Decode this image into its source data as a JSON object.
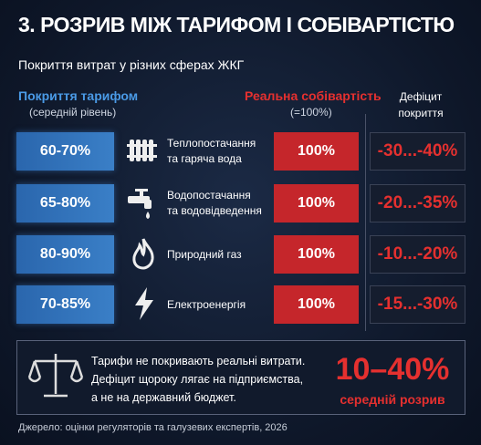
{
  "title": "3. РОЗРИВ МІЖ ТАРИФОМ І СОБІВАРТІСТЮ",
  "subtitle": "Покриття витрат у різних сферах ЖКГ",
  "columns": {
    "tariff": "Покриття тарифом",
    "tariff_note": "(середній рівень)",
    "cost": "Реальна собівартість",
    "cost_note": "(=100%)",
    "deficit": [
      "Дефіцит",
      "покриття"
    ]
  },
  "rows": [
    {
      "tariff": "60-70%",
      "sector": [
        "Теплопостачання",
        "та гаряча вода"
      ],
      "cost": "100%",
      "deficit": "-30...-40%"
    },
    {
      "tariff": "65-80%",
      "sector": [
        "Водопостачання",
        "та водовідведення"
      ],
      "cost": "100%",
      "deficit": "-20...-35%"
    },
    {
      "tariff": "80-90%",
      "sector": [
        "Природний газ"
      ],
      "cost": "100%",
      "deficit": "-10...-20%"
    },
    {
      "tariff": "70-85%",
      "sector": [
        "Електроенергія"
      ],
      "cost": "100%",
      "deficit": "-15...-30%"
    }
  ],
  "summary": {
    "text": [
      "Тарифи не покривають реальні витрати.",
      "Дефіцит щороку лягає на підприємства,",
      "а не на державний бюджет."
    ],
    "range": "10–40%",
    "range_label": "середній розрив"
  },
  "source": "Джерело: оцінки регуляторів та галузевих експертів, 2026"
}
